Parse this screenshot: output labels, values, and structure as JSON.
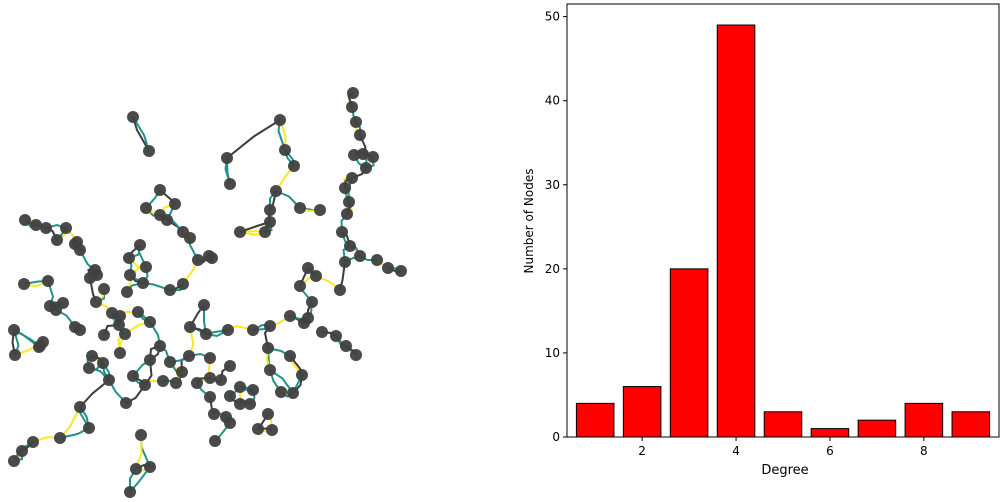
{
  "figure": {
    "left_panel": {
      "type": "network-graph"
    },
    "right_panel": {
      "type": "bar",
      "xlabel": "Degree",
      "ylabel": "Number of Nodes"
    }
  },
  "colors": {
    "bar_fill": "#ff0000",
    "bar_edge": "#000000",
    "node_fill": "#404040",
    "edge_teal": "#21918c",
    "edge_yellow": "#fde725",
    "edge_dark": "#3b3b3b"
  },
  "chart_data": {
    "type": "bar",
    "x": [
      1,
      2,
      3,
      4,
      5,
      6,
      7,
      8,
      9
    ],
    "values": [
      4,
      6,
      20,
      49,
      3,
      1,
      2,
      4,
      3
    ],
    "xlabel": "Degree",
    "ylabel": "Number of Nodes",
    "xticks": [
      2,
      4,
      6,
      8
    ],
    "yticks": [
      0,
      10,
      20,
      30,
      40,
      50
    ],
    "xlim": [
      0.4,
      9.6
    ],
    "ylim": [
      0,
      51.5
    ],
    "grid": false
  }
}
